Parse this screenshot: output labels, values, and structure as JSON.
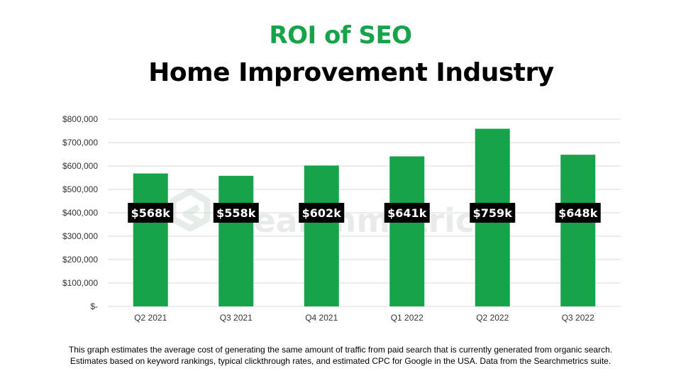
{
  "title_accent": "ROI of SEO",
  "title_main": "Home Improvement Industry",
  "footnote": [
    "This graph estimates the average cost of generating the same amount of traffic from paid search that is currently generated from organic search.",
    "Estimates based on keyword rankings, typical clickthrough rates, and estimated CPC for Google in the USA. Data from the Searchmetrics suite."
  ],
  "watermark": "searchmetrics",
  "colors": {
    "accent": "#16a34a",
    "bar": "#16a34a",
    "label_bg": "#000000",
    "label_text": "#ffffff"
  },
  "chart_data": {
    "type": "bar",
    "categories": [
      "Q2 2021",
      "Q3 2021",
      "Q4 2021",
      "Q1 2022",
      "Q2 2022",
      "Q3 2022"
    ],
    "values": [
      568000,
      558000,
      602000,
      641000,
      759000,
      648000
    ],
    "data_labels": [
      "$568k",
      "$558k",
      "$602k",
      "$641k",
      "$759k",
      "$648k"
    ],
    "ylim": [
      0,
      800000
    ],
    "yticks": [
      0,
      100000,
      200000,
      300000,
      400000,
      500000,
      600000,
      700000,
      800000
    ],
    "ytick_labels": [
      "$-",
      "$100,000",
      "$200,000",
      "$300,000",
      "$400,000",
      "$500,000",
      "$600,000",
      "$700,000",
      "$800,000"
    ],
    "grid": true,
    "legend": "none"
  }
}
